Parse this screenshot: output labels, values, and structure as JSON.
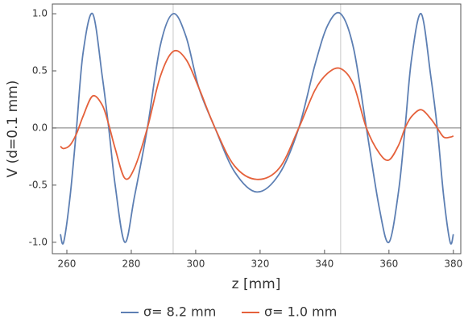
{
  "chart_data": {
    "type": "line",
    "x_label": "z [mm]",
    "y_label": "V (d=0.1 mm)",
    "x": [
      258,
      259,
      261,
      263,
      265,
      268,
      271,
      273,
      275,
      278,
      281,
      285,
      289,
      293,
      297,
      301,
      306,
      312,
      319,
      326,
      332,
      337,
      341,
      345,
      349,
      353,
      357,
      360,
      363,
      365,
      367,
      370,
      373,
      375,
      377,
      379,
      380
    ],
    "series": [
      {
        "name": "σ= 8.2 mm",
        "color": "#5d7fb3",
        "values": [
          -0.93,
          -1.0,
          -0.6,
          0,
          0.65,
          1.0,
          0.45,
          0,
          -0.5,
          -1.0,
          -0.6,
          0,
          0.72,
          1.0,
          0.8,
          0.35,
          0,
          -0.38,
          -0.56,
          -0.4,
          0,
          0.55,
          0.9,
          1.0,
          0.7,
          0,
          -0.7,
          -1.0,
          -0.55,
          0,
          0.6,
          1.0,
          0.45,
          0,
          -0.6,
          -1.0,
          -0.93
        ]
      },
      {
        "name": "σ= 1.0 mm",
        "color": "#e5613b",
        "values": [
          -0.16,
          -0.18,
          -0.15,
          -0.05,
          0.1,
          0.28,
          0.2,
          0.03,
          -0.18,
          -0.44,
          -0.35,
          0,
          0.45,
          0.67,
          0.6,
          0.35,
          0,
          -0.33,
          -0.45,
          -0.35,
          0,
          0.33,
          0.48,
          0.52,
          0.38,
          0,
          -0.22,
          -0.28,
          -0.15,
          0,
          0.1,
          0.16,
          0.08,
          0,
          -0.08,
          -0.08,
          -0.07
        ]
      }
    ],
    "xlim": [
      255.5,
      382.3
    ],
    "ylim": [
      -1.1,
      1.085
    ],
    "xticks": [
      260,
      280,
      300,
      320,
      340,
      360,
      380
    ],
    "yticks": [
      {
        "value": -1,
        "label": "-1.0"
      },
      -0.5,
      {
        "value": 0,
        "label": "0.0"
      },
      0.5,
      {
        "value": 1,
        "label": "1.0"
      }
    ],
    "x_gridlines": [
      293,
      345
    ],
    "zero_line": true,
    "legend": "bottom"
  }
}
